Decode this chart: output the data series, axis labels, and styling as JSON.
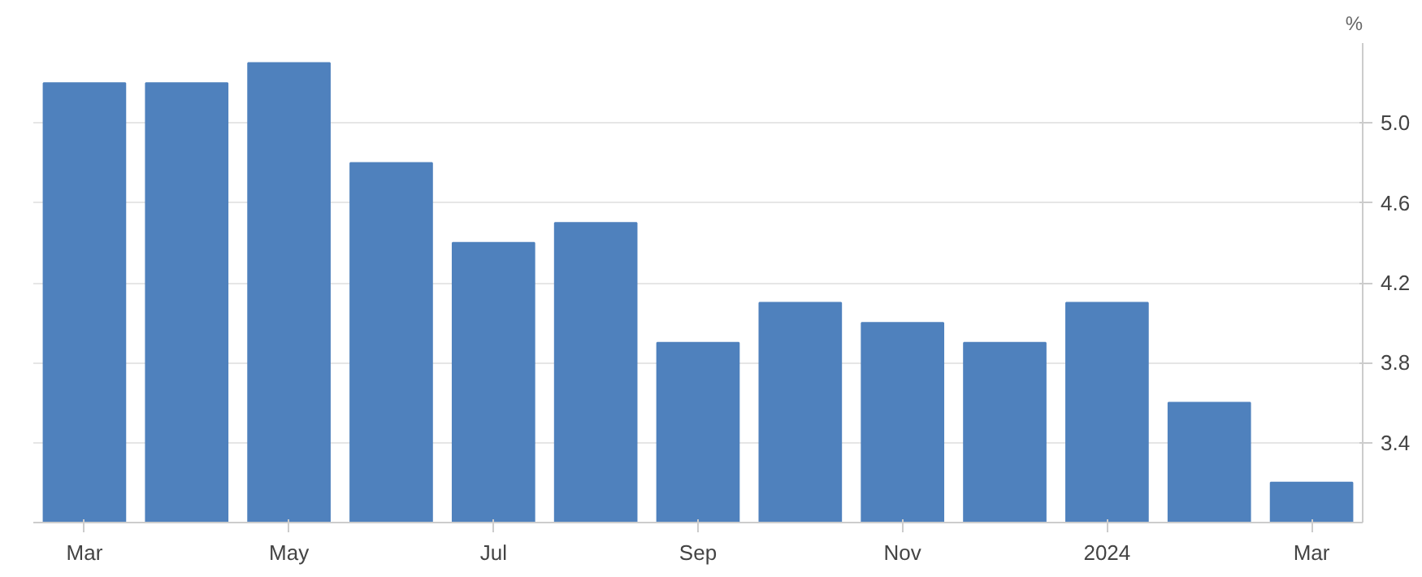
{
  "chart_data": {
    "type": "bar",
    "ylabel": "%",
    "categories": [
      "Mar",
      null,
      "May",
      null,
      "Jul",
      null,
      "Sep",
      null,
      "Nov",
      null,
      "2024",
      null,
      "Mar"
    ],
    "values": [
      5.2,
      5.2,
      5.3,
      4.8,
      4.4,
      4.5,
      3.9,
      4.1,
      4.0,
      3.9,
      4.1,
      3.6,
      3.2
    ],
    "color": "#4f81bd",
    "ylim": [
      3.0,
      5.4
    ],
    "yticks": [
      3.4,
      3.8,
      4.2,
      4.6,
      {
        "value": 5,
        "label": "5.0"
      }
    ],
    "grid": "y"
  }
}
